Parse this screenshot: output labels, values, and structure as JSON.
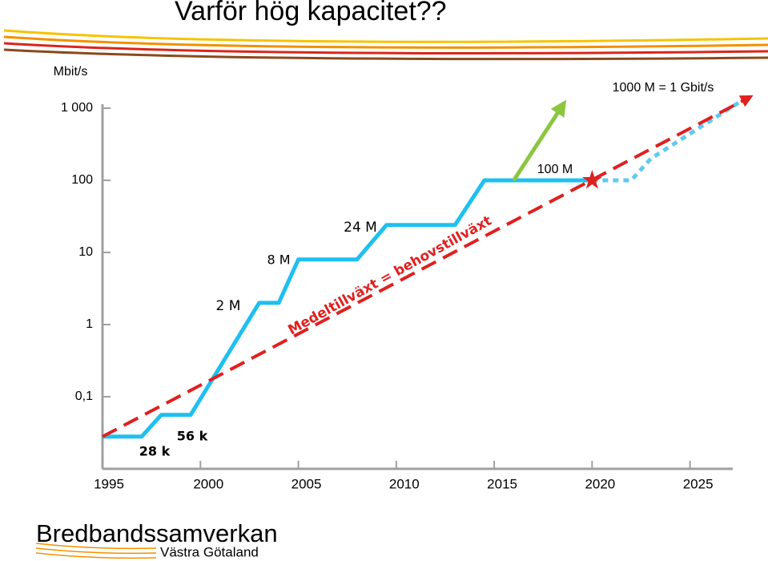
{
  "chart_data": {
    "type": "line",
    "title": "Varför hög kapacitet??",
    "y_label": "Mbit/s",
    "log_y": true,
    "xlim": [
      1995,
      2028
    ],
    "ylim": [
      0.01,
      1000
    ],
    "xticks": [
      1995,
      2000,
      2005,
      2010,
      2015,
      2020,
      2025
    ],
    "yticks": [
      {
        "value": 1000,
        "label": "1 000"
      },
      100,
      10,
      1,
      {
        "value": 0.1,
        "label": "0,1"
      }
    ],
    "series": [
      {
        "color": "#1ec0f0",
        "style": "solid",
        "x": [
          1995,
          1997,
          1998,
          1999.5,
          2003,
          2004,
          2005,
          2008,
          2009.5,
          2013,
          2014.5,
          2020
        ],
        "values": [
          0.028,
          0.028,
          0.056,
          0.056,
          2,
          2,
          8,
          8,
          24,
          24,
          100,
          100
        ]
      },
      {
        "color": "#5fcaf0",
        "style": "dotted",
        "x": [
          2020,
          2022,
          2023,
          2027.5
        ],
        "values": [
          100,
          100,
          200,
          1200
        ]
      },
      {
        "color": "#e02020",
        "style": "dashed",
        "arrow": true,
        "x": [
          1995,
          2028
        ],
        "values": [
          0.028,
          1400
        ]
      },
      {
        "color": "#8cc63f",
        "style": "solid",
        "arrow": true,
        "x": [
          2016,
          2018.5
        ],
        "values": [
          100,
          1100
        ]
      }
    ],
    "markers": [
      {
        "x": 2020,
        "value": 100,
        "color": "#e02020",
        "shape": "star"
      }
    ],
    "annotations": [
      "28 k",
      "56 k",
      "2 M",
      "8 M",
      "24 M",
      "100 M",
      "1000 M = 1 Gbit/s",
      "Medeltillväxt = behovstillväxt"
    ]
  },
  "logo": {
    "name": "Bredbandssamverkan",
    "region": "Västra Götaland"
  }
}
